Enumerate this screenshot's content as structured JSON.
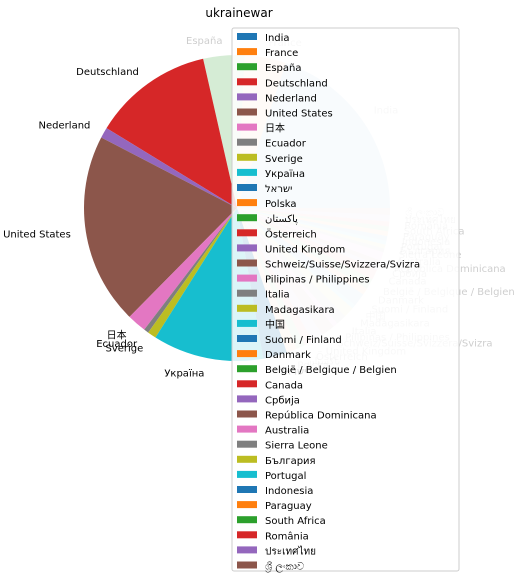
{
  "chart_data": {
    "type": "pie",
    "title": "ukrainewar",
    "legend_position": "right-overlapping",
    "series": [
      {
        "label": "India",
        "value": 19.5,
        "color": "#1f77b4",
        "dimmed": true
      },
      {
        "label": "France",
        "value": 4.3,
        "color": "#ff7f0e",
        "dimmed": true
      },
      {
        "label": "España",
        "value": 4.3,
        "color": "#2ca02c",
        "dimmed": true
      },
      {
        "label": "Deutschland",
        "value": 12.5,
        "color": "#d62728"
      },
      {
        "label": "Nederland",
        "value": 1.1,
        "color": "#9467bd"
      },
      {
        "label": "United States",
        "value": 19.9,
        "color": "#8c564b"
      },
      {
        "label": "日本",
        "value": 2.0,
        "color": "#e377c2"
      },
      {
        "label": "Ecuador",
        "value": 0.5,
        "color": "#7f7f7f"
      },
      {
        "label": "Sverige",
        "value": 0.9,
        "color": "#bcbd22"
      },
      {
        "label": "Україна",
        "value": 11.5,
        "color": "#17becf"
      },
      {
        "label": "ישראל",
        "value": 2.5,
        "color": "#1f77b4"
      },
      {
        "label": "Polska",
        "value": 1.1,
        "color": "#ff7f0e",
        "dimmed": true
      },
      {
        "label": "پاکستان",
        "value": 0.9,
        "color": "#2ca02c",
        "dimmed": true
      },
      {
        "label": "Österreich",
        "value": 0.9,
        "color": "#d62728",
        "dimmed": true
      },
      {
        "label": "United Kingdom",
        "value": 1.2,
        "color": "#9467bd",
        "dimmed": true
      },
      {
        "label": "Schweiz/Suisse/Svizzera/Svizra",
        "value": 1.4,
        "color": "#8c564b",
        "dimmed": true
      },
      {
        "label": "Pilipinas / Philippines",
        "value": 0.5,
        "color": "#e377c2",
        "dimmed": true
      },
      {
        "label": "Italia",
        "value": 1.1,
        "color": "#7f7f7f",
        "dimmed": true
      },
      {
        "label": "Madagasikara",
        "value": 1.1,
        "color": "#bcbd22",
        "dimmed": true
      },
      {
        "label": "中国",
        "value": 0.4,
        "color": "#17becf",
        "dimmed": true
      },
      {
        "label": "Suomi / Finland",
        "value": 1.4,
        "color": "#1f77b4",
        "dimmed": true
      },
      {
        "label": "Danmark",
        "value": 0.7,
        "color": "#ff7f0e",
        "dimmed": true
      },
      {
        "label": "België / Belgique / Belgien",
        "value": 1.1,
        "color": "#2ca02c",
        "dimmed": true
      },
      {
        "label": "Canada",
        "value": 1.1,
        "color": "#d62728",
        "dimmed": true
      },
      {
        "label": "Србија",
        "value": 0.5,
        "color": "#9467bd",
        "dimmed": true
      },
      {
        "label": "República Dominicana",
        "value": 0.5,
        "color": "#8c564b",
        "dimmed": true
      },
      {
        "label": "Australia",
        "value": 0.9,
        "color": "#e377c2",
        "dimmed": true
      },
      {
        "label": "Sierra Leone",
        "value": 0.4,
        "color": "#7f7f7f",
        "dimmed": true
      },
      {
        "label": "България",
        "value": 0.4,
        "color": "#bcbd22",
        "dimmed": true
      },
      {
        "label": "Portugal",
        "value": 0.4,
        "color": "#17becf",
        "dimmed": true
      },
      {
        "label": "Indonesia",
        "value": 0.5,
        "color": "#1f77b4",
        "dimmed": true
      },
      {
        "label": "Paraguay",
        "value": 0.5,
        "color": "#ff7f0e",
        "dimmed": true
      },
      {
        "label": "South Africa",
        "value": 0.5,
        "color": "#2ca02c",
        "dimmed": true
      },
      {
        "label": "România",
        "value": 0.5,
        "color": "#d62728",
        "dimmed": true
      },
      {
        "label": "ประเทศไทย",
        "value": 0.7,
        "color": "#9467bd",
        "dimmed": true
      },
      {
        "label": "ශ්‍රී ලංකාව",
        "value": 0.7,
        "color": "#8c564b",
        "dimmed": true
      }
    ]
  }
}
